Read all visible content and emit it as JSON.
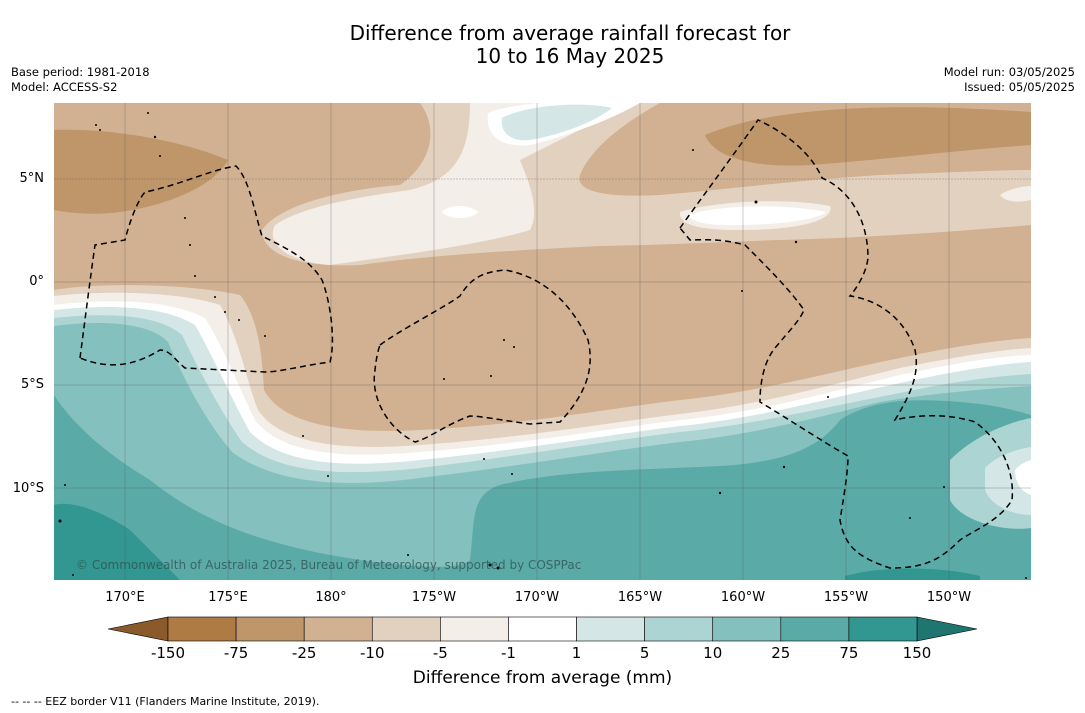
{
  "header": {
    "title_line1": "Difference from average rainfall forecast for",
    "title_line2": "10 to 16 May 2025",
    "base_period": "Base period: 1981-2018",
    "model": "Model: ACCESS-S2",
    "model_run": "Model run: 03/05/2025",
    "issued": "Issued: 05/05/2025"
  },
  "map": {
    "lat_labels": [
      "5°N",
      "0°",
      "5°S",
      "10°S"
    ],
    "lon_labels": [
      "170°E",
      "175°E",
      "180°",
      "175°W",
      "170°W",
      "165°W",
      "160°W",
      "155°W",
      "150°W"
    ],
    "copyright": "© Commonwealth of Australia 2025, Bureau of Meteorology, supported by COSPPac"
  },
  "legend": {
    "title": "Difference from average (mm)",
    "tick_labels": [
      "-150",
      "-75",
      "-25",
      "-10",
      "-5",
      "-1",
      "1",
      "5",
      "10",
      "25",
      "75",
      "150"
    ],
    "colors": {
      "below_-150": "#8a5a2b",
      "-150_-75": "#ae7b45",
      "-75_-25": "#bf956a",
      "-25_-10": "#d1b191",
      "-10_-5": "#e3d1bf",
      "-5_-1": "#f4eee8",
      "-1_1": "#ffffff",
      "1_5": "#d4e7e6",
      "5_10": "#abd4d2",
      "10_25": "#84c0bd",
      "25_75": "#5aaba8",
      "75_150": "#329791",
      "above_150": "#1f7671"
    }
  },
  "footnote": "--  --  -- EEZ border V11 (Flanders Marine Institute, 2019)."
}
